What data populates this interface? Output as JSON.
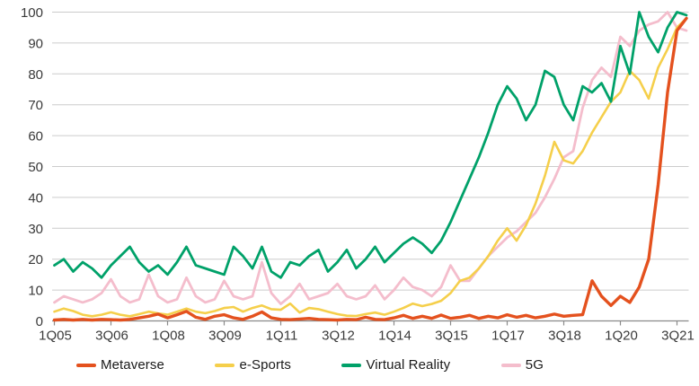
{
  "chart_data": {
    "type": "line",
    "title": "",
    "xlabel": "",
    "ylabel": "",
    "x_unit": "quarter",
    "x_start": "1Q05",
    "x_end": "4Q21",
    "n_points": 68,
    "x_tick_labels": [
      "1Q05",
      "3Q06",
      "1Q08",
      "3Q09",
      "1Q11",
      "3Q12",
      "1Q14",
      "3Q15",
      "1Q17",
      "3Q18",
      "1Q20",
      "3Q21"
    ],
    "x_tick_quarter_indices": [
      0,
      6,
      12,
      18,
      24,
      30,
      36,
      42,
      48,
      54,
      60,
      66
    ],
    "y_ticks": [
      0,
      10,
      20,
      30,
      40,
      50,
      60,
      70,
      80,
      90,
      100
    ],
    "ylim": [
      0,
      100
    ],
    "grid": "horizontal-only",
    "legend_position": "bottom",
    "series": [
      {
        "name": "Metaverse",
        "color": "#E4511E",
        "values": [
          0.3,
          0.5,
          0.3,
          0.5,
          0.3,
          0.5,
          0.4,
          0.3,
          0.5,
          1,
          1.5,
          2.2,
          1,
          2,
          3.1,
          1.2,
          0.5,
          1.5,
          2,
          1,
          0.5,
          1.5,
          2.9,
          1,
          0.5,
          0.4,
          0.6,
          0.8,
          0.5,
          0.4,
          0.3,
          0.5,
          0.4,
          1.2,
          0.5,
          0.4,
          1,
          1.8,
          0.8,
          1.5,
          0.8,
          1.9,
          0.8,
          1.2,
          1.8,
          0.8,
          1.5,
          1,
          2,
          1.2,
          1.8,
          1,
          1.5,
          2.2,
          1.5,
          1.8,
          2,
          13,
          8,
          5,
          8,
          6,
          11,
          20,
          44,
          74,
          94,
          98
        ]
      },
      {
        "name": "e-Sports",
        "color": "#F5CF4B",
        "values": [
          3,
          4,
          3.2,
          2,
          1.5,
          2,
          2.8,
          2,
          1.5,
          2.2,
          3,
          2.4,
          2,
          3,
          4,
          3,
          2.5,
          3.2,
          4.2,
          4.5,
          3,
          4.2,
          5,
          3.8,
          3.6,
          5.6,
          2.7,
          4.2,
          3.8,
          3,
          2.2,
          1.7,
          1.6,
          2.2,
          2.7,
          2,
          3,
          4.2,
          5.6,
          4.8,
          5.5,
          6.5,
          9,
          13,
          14,
          17,
          21,
          26,
          30,
          26,
          31,
          38,
          47,
          58,
          52,
          51,
          55,
          61,
          66,
          71,
          74,
          81,
          78,
          72,
          82,
          88,
          95,
          98
        ]
      },
      {
        "name": "Virtual Reality",
        "color": "#00A169",
        "values": [
          18,
          20,
          16,
          19,
          17,
          14,
          18,
          21,
          24,
          19,
          16,
          18,
          15,
          19,
          24,
          18,
          17,
          16,
          15,
          24,
          21,
          17,
          24,
          16,
          14,
          19,
          18,
          21,
          23,
          16,
          19,
          23,
          17,
          20,
          24,
          19,
          22,
          25,
          27,
          25,
          22,
          26,
          32,
          39,
          46,
          53,
          61,
          70,
          76,
          72,
          65,
          70,
          81,
          79,
          70,
          65,
          76,
          74,
          77,
          71,
          89,
          80,
          100,
          92,
          87,
          95,
          100,
          99
        ]
      },
      {
        "name": "5G",
        "color": "#F4BDCC",
        "values": [
          6,
          8,
          7,
          6,
          7,
          9,
          13.5,
          8,
          6,
          7,
          15,
          8,
          6,
          7,
          14,
          8,
          6,
          7,
          13,
          8,
          7,
          8,
          19,
          9,
          5.5,
          8,
          12,
          7,
          8,
          9,
          12,
          8,
          7,
          8,
          11.5,
          7,
          10,
          14,
          11,
          10,
          8,
          11,
          18,
          13,
          13,
          17,
          21,
          24,
          27,
          29,
          32,
          35,
          40,
          46,
          53,
          55,
          69,
          78,
          82,
          79,
          92,
          89,
          94,
          96,
          97,
          100,
          95,
          94
        ]
      }
    ]
  },
  "colors": {
    "background": "#FFFFFF",
    "gridline": "#CCCCCC",
    "axis_line": "#8A8A8A",
    "tick_label": "#3A3A3A",
    "legend_label": "#1A1A1A"
  }
}
